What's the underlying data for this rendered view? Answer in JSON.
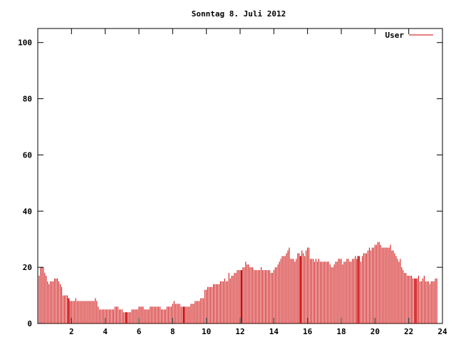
{
  "chart_data": {
    "type": "bar",
    "title": "Sonntag 8. Juli 2012",
    "xlabel": "",
    "ylabel": "",
    "xlim": [
      0,
      24
    ],
    "ylim": [
      0,
      105
    ],
    "x_ticks": [
      2,
      4,
      6,
      8,
      10,
      12,
      14,
      16,
      18,
      20,
      22,
      24
    ],
    "y_ticks": [
      0,
      20,
      40,
      60,
      80,
      100
    ],
    "legend_position": "top-right",
    "grid": false,
    "series": [
      {
        "name": "User",
        "color": "#cc0000",
        "sample_interval_hours": 0.08333,
        "values": [
          17,
          20,
          20,
          20,
          18,
          17,
          15,
          14,
          15,
          15,
          15,
          16,
          16,
          16,
          15,
          14,
          13,
          10,
          10,
          10,
          10,
          9,
          8,
          8,
          8,
          8,
          9,
          8,
          8,
          8,
          8,
          8,
          8,
          8,
          8,
          8,
          8,
          8,
          8,
          8,
          9,
          8,
          6,
          5,
          5,
          5,
          5,
          5,
          5,
          5,
          5,
          5,
          5,
          5,
          6,
          6,
          6,
          5,
          5,
          5,
          4,
          4,
          4,
          4,
          4,
          4,
          5,
          5,
          5,
          5,
          5,
          6,
          6,
          6,
          6,
          5,
          5,
          5,
          5,
          6,
          6,
          6,
          6,
          6,
          6,
          6,
          6,
          5,
          5,
          5,
          5,
          6,
          6,
          6,
          6,
          7,
          8,
          7,
          7,
          7,
          7,
          6,
          6,
          6,
          6,
          6,
          6,
          6,
          7,
          7,
          7,
          8,
          8,
          8,
          8,
          9,
          9,
          9,
          12,
          12,
          13,
          13,
          13,
          13,
          14,
          14,
          14,
          14,
          14,
          15,
          15,
          15,
          16,
          15,
          15,
          18,
          16,
          17,
          17,
          18,
          18,
          19,
          19,
          19,
          19,
          20,
          20,
          22,
          21,
          21,
          20,
          20,
          20,
          19,
          19,
          19,
          19,
          19,
          20,
          19,
          19,
          19,
          19,
          19,
          19,
          18,
          18,
          19,
          20,
          20,
          21,
          22,
          23,
          24,
          24,
          24,
          25,
          26,
          27,
          23,
          23,
          23,
          22,
          23,
          25,
          25,
          24,
          26,
          25,
          24,
          26,
          27,
          27,
          23,
          23,
          23,
          22,
          23,
          22,
          23,
          22,
          22,
          22,
          22,
          22,
          22,
          22,
          21,
          20,
          20,
          21,
          22,
          22,
          23,
          23,
          23,
          21,
          22,
          22,
          23,
          23,
          22,
          22,
          23,
          23,
          24,
          23,
          24,
          24,
          22,
          24,
          25,
          25,
          25,
          26,
          27,
          26,
          27,
          27,
          28,
          28,
          29,
          29,
          28,
          27,
          27,
          27,
          27,
          27,
          27,
          28,
          26,
          26,
          25,
          24,
          23,
          22,
          23,
          20,
          19,
          18,
          18,
          17,
          17,
          17,
          17,
          16,
          16,
          16,
          16,
          17,
          15,
          15,
          16,
          17,
          15,
          15,
          15,
          14,
          15,
          15,
          15,
          16,
          16
        ],
        "highlight_indices": [
          21,
          62,
          103,
          144,
          186,
          227,
          268
        ]
      }
    ]
  }
}
